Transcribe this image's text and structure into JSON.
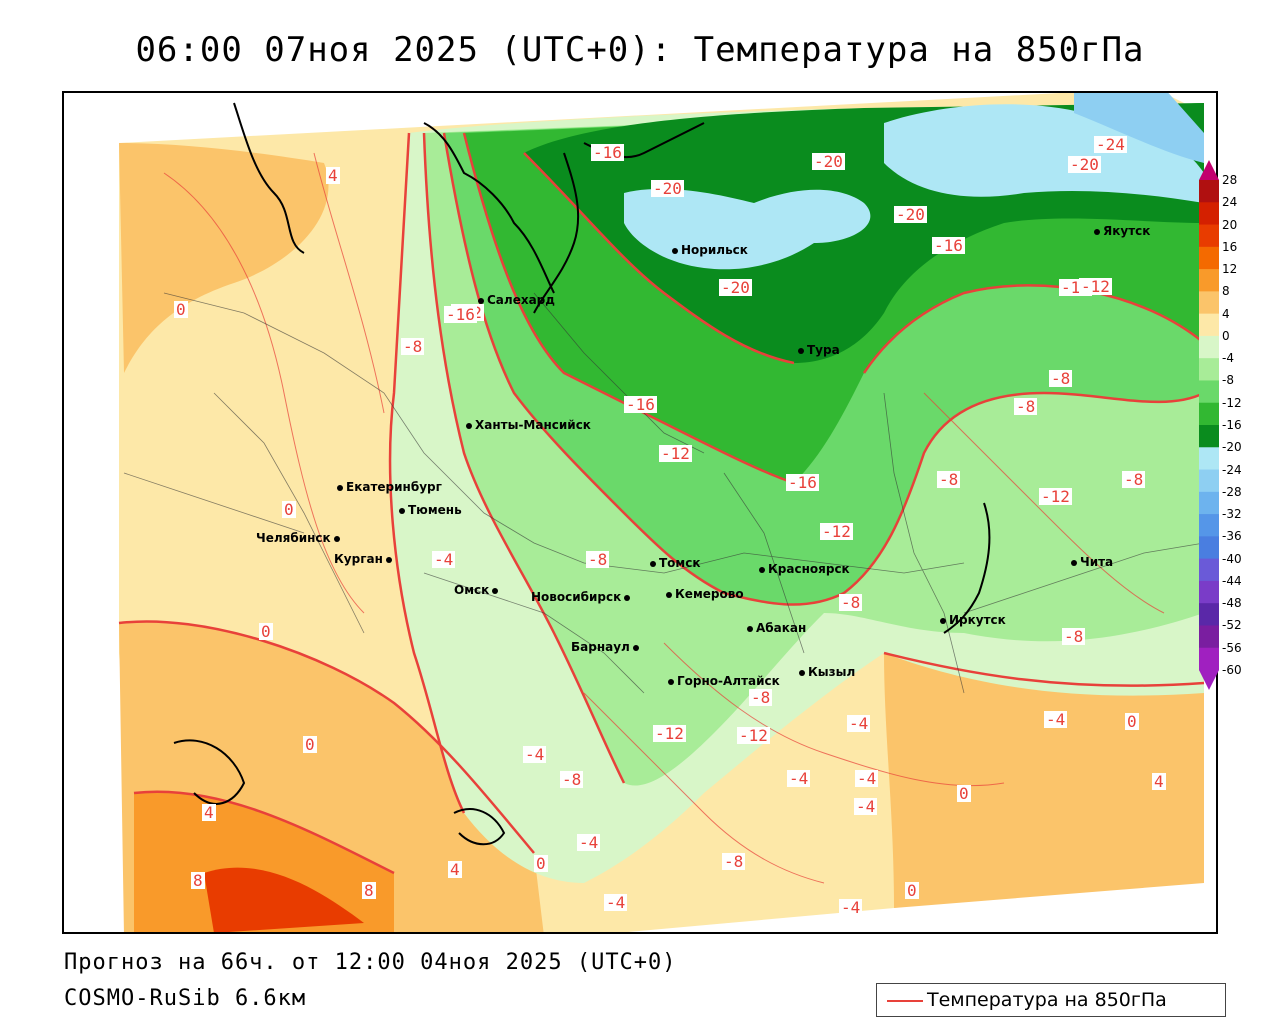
{
  "title": "06:00 07ноя 2025 (UTC+0): Температура на 850гПа",
  "footer": {
    "forecast": "Прогноз на 66ч. от 12:00 04ноя 2025 (UTC+0)",
    "model": "COSMO-RuSib 6.6км"
  },
  "legend": {
    "label": "Температура на 850гПа",
    "line_color": "#e8413a"
  },
  "colorbar": {
    "ticks": [
      "28",
      "24",
      "20",
      "16",
      "12",
      "8",
      "4",
      "0",
      "-4",
      "-8",
      "-12",
      "-16",
      "-20",
      "-24",
      "-28",
      "-32",
      "-36",
      "-40",
      "-44",
      "-48",
      "-52",
      "-56",
      "-60"
    ],
    "colors": [
      "#c2006e",
      "#b01010",
      "#d42000",
      "#e83c00",
      "#f46a00",
      "#f99a2a",
      "#fbc46a",
      "#fde8a8",
      "#d8f6c8",
      "#a8ec98",
      "#6ad96a",
      "#32b832",
      "#0a8c1e",
      "#aee7f5",
      "#8ecff2",
      "#6db3ee",
      "#5596e8",
      "#4a7ee0",
      "#6a5ad8",
      "#7a3cc8",
      "#5a28a8",
      "#7a1ea0",
      "#a020c0"
    ]
  },
  "cities": [
    {
      "name": "Салехард"
    },
    {
      "name": "Норильск"
    },
    {
      "name": "Якутск"
    },
    {
      "name": "Тура"
    },
    {
      "name": "Ханты-Мансийск"
    },
    {
      "name": "Екатеринбург"
    },
    {
      "name": "Тюмень"
    },
    {
      "name": "Челябинск"
    },
    {
      "name": "Курган"
    },
    {
      "name": "Омск"
    },
    {
      "name": "Новосибирск"
    },
    {
      "name": "Томск"
    },
    {
      "name": "Кемерово"
    },
    {
      "name": "Красноярск"
    },
    {
      "name": "Абакан"
    },
    {
      "name": "Барнаул"
    },
    {
      "name": "Горно-Алтайск"
    },
    {
      "name": "Кызыл"
    },
    {
      "name": "Иркутск"
    },
    {
      "name": "Чита"
    }
  ],
  "contour_labels": [
    "-16",
    "-20",
    "-20",
    "-20",
    "-24",
    "-20",
    "-16",
    "-12",
    "-20",
    "-12",
    "-8",
    "-16",
    "-12",
    "-8",
    "-8",
    "-16",
    "-12",
    "-8",
    "-12",
    "-8",
    "-8",
    "-4",
    "-8",
    "-8",
    "-4",
    "-12",
    "-12",
    "-8",
    "-4",
    "-4",
    "-4",
    "-4",
    "-4",
    "-8",
    "-8",
    "-4",
    "-4",
    "-4",
    "0",
    "0",
    "0",
    "0",
    "0",
    "0",
    "0",
    "0",
    "4",
    "4",
    "4",
    "4",
    "4",
    "8",
    "8",
    "-12",
    "-16"
  ]
}
